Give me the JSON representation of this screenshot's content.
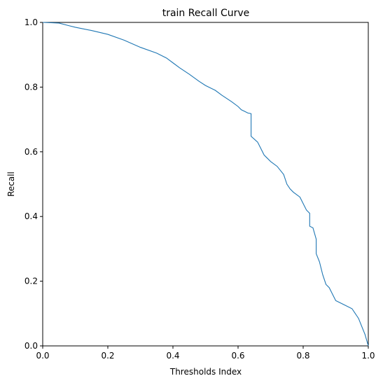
{
  "chart_data": {
    "type": "line",
    "title": "train Recall Curve",
    "xlabel": "Thresholds Index",
    "ylabel": "Recall",
    "xlim": [
      0,
      1
    ],
    "ylim": [
      0,
      1
    ],
    "grid": false,
    "x_ticks": [
      "0.0",
      "0.2",
      "0.4",
      "0.6",
      "0.8",
      "1.0"
    ],
    "y_ticks": [
      "0.0",
      "0.2",
      "0.4",
      "0.6",
      "0.8",
      "1.0"
    ],
    "color": "#1f77b4",
    "series": [
      {
        "x": [
          0.0,
          0.05,
          0.08,
          0.1,
          0.15,
          0.2,
          0.25,
          0.3,
          0.35,
          0.38,
          0.4,
          0.42,
          0.45,
          0.48,
          0.5,
          0.53,
          0.55,
          0.58,
          0.6,
          0.61,
          0.62,
          0.63,
          0.64,
          0.64,
          0.66,
          0.67,
          0.68,
          0.7,
          0.72,
          0.74,
          0.75,
          0.76,
          0.77,
          0.79,
          0.8,
          0.81,
          0.82,
          0.82,
          0.83,
          0.84,
          0.84,
          0.85,
          0.86,
          0.87,
          0.88,
          0.89,
          0.9,
          0.91,
          0.93,
          0.95,
          0.96,
          0.97,
          0.98,
          0.99,
          1.0
        ],
        "y": [
          1.0,
          0.998,
          0.99,
          0.985,
          0.975,
          0.963,
          0.945,
          0.923,
          0.905,
          0.89,
          0.875,
          0.86,
          0.84,
          0.818,
          0.805,
          0.79,
          0.775,
          0.755,
          0.74,
          0.73,
          0.725,
          0.72,
          0.718,
          0.648,
          0.63,
          0.61,
          0.59,
          0.57,
          0.555,
          0.53,
          0.5,
          0.485,
          0.475,
          0.46,
          0.44,
          0.42,
          0.41,
          0.37,
          0.365,
          0.33,
          0.285,
          0.26,
          0.22,
          0.19,
          0.18,
          0.16,
          0.14,
          0.135,
          0.125,
          0.115,
          0.1,
          0.085,
          0.06,
          0.035,
          0.0
        ]
      }
    ]
  }
}
